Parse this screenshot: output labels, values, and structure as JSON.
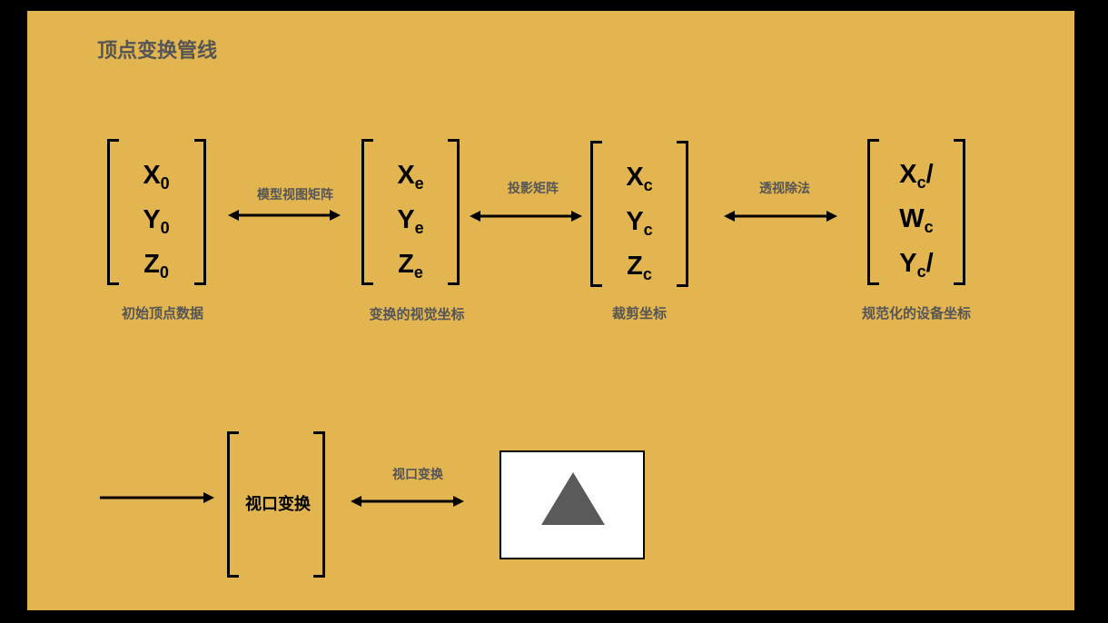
{
  "title": "顶点变换管线",
  "matrices": [
    {
      "rows": [
        {
          "base": "X",
          "sub": "0",
          "suffix": ""
        },
        {
          "base": "Y",
          "sub": "0",
          "suffix": ""
        },
        {
          "base": "Z",
          "sub": "0",
          "suffix": ""
        }
      ],
      "caption": "初始顶点数据"
    },
    {
      "rows": [
        {
          "base": "X",
          "sub": "e",
          "suffix": ""
        },
        {
          "base": "Y",
          "sub": "e",
          "suffix": ""
        },
        {
          "base": "Z",
          "sub": "e",
          "suffix": ""
        }
      ],
      "caption": "变换的视觉坐标"
    },
    {
      "rows": [
        {
          "base": "X",
          "sub": "c",
          "suffix": ""
        },
        {
          "base": "Y",
          "sub": "c",
          "suffix": ""
        },
        {
          "base": "Z",
          "sub": "c",
          "suffix": ""
        }
      ],
      "caption": "裁剪坐标"
    },
    {
      "rows": [
        {
          "base": "X",
          "sub": "c",
          "suffix": "/"
        },
        {
          "base": "W",
          "sub": "c",
          "suffix": ""
        },
        {
          "base": "Y",
          "sub": "c",
          "suffix": "/"
        }
      ],
      "caption": "规范化的设备坐标"
    }
  ],
  "transforms": [
    "模型视图矩阵",
    "投影矩阵",
    "透视除法",
    "视口变换"
  ],
  "viewport_box_label": "视口变换",
  "colors": {
    "background": "#e2b550",
    "frame": "#000000",
    "label": "#555555",
    "triangle": "#5a5a5a"
  }
}
